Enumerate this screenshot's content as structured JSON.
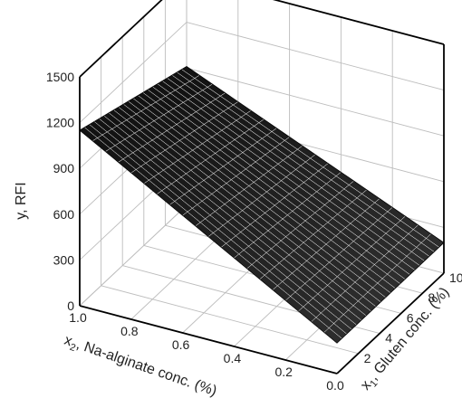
{
  "chart_data": {
    "type": "surface3d",
    "title": "",
    "zlabel": "y, RFI",
    "xlabel_x1_main": "x",
    "xlabel_x1_sub": "1",
    "xlabel_x1_rest": ", Gluten conc. (%)",
    "xlabel_x2_main": "x",
    "xlabel_x2_sub": "2",
    "xlabel_x2_rest": ", Na-alginate conc. (%)",
    "x1_range": [
      0,
      10
    ],
    "x1_ticks": [
      "2",
      "4",
      "6",
      "8",
      "10"
    ],
    "x2_range": [
      0,
      1.0
    ],
    "x2_ticks": [
      "1.0",
      "0.8",
      "0.6",
      "0.4",
      "0.2",
      "0.0"
    ],
    "z_range": [
      0,
      1500
    ],
    "z_ticks": [
      "0",
      "300",
      "600",
      "900",
      "1200",
      "1500"
    ],
    "surface_corners": [
      {
        "x1": 0,
        "x2": 1.0,
        "y": 1150
      },
      {
        "x1": 10,
        "x2": 1.0,
        "y": 910
      },
      {
        "x1": 0,
        "x2": 0.0,
        "y": 200
      },
      {
        "x1": 10,
        "x2": 0.0,
        "y": 200
      }
    ],
    "grid": true
  }
}
